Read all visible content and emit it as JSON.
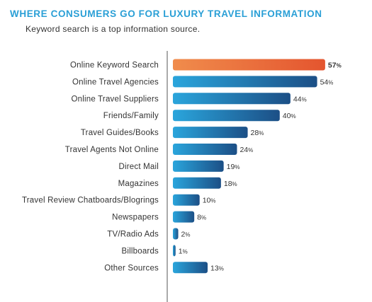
{
  "title": "WHERE CONSUMERS GO FOR LUXURY TRAVEL INFORMATION",
  "subtitle": "Keyword search is a top information source.",
  "colors": {
    "highlight_start": "#f08c4c",
    "highlight_end": "#e4552f",
    "bar_start": "#2aa5dc",
    "bar_end": "#1c4f86",
    "axis": "#555555",
    "text": "#333333"
  },
  "chart_data": {
    "type": "bar",
    "orientation": "horizontal",
    "categories": [
      "Online Keyword Search",
      "Online Travel Agencies",
      "Online Travel Suppliers",
      "Friends/Family",
      "Travel Guides/Books",
      "Travel Agents Not Online",
      "Direct Mail",
      "Magazines",
      "Travel Review Chatboards/Blogrings",
      "Newspapers",
      "TV/Radio Ads",
      "Billboards",
      "Other Sources"
    ],
    "values": [
      57,
      54,
      44,
      40,
      28,
      24,
      19,
      18,
      10,
      8,
      2,
      1,
      13
    ],
    "value_labels": [
      "57%",
      "54%",
      "44%",
      "40%",
      "28%",
      "24%",
      "19%",
      "18%",
      "10%",
      "8%",
      "2%",
      "1%",
      "13%"
    ],
    "highlighted_category": "Online Keyword Search",
    "unit": "%",
    "title": "WHERE CONSUMERS GO FOR LUXURY TRAVEL INFORMATION",
    "subtitle": "Keyword search is a top information source.",
    "xlabel": "",
    "ylabel": "",
    "xlim": [
      0,
      57
    ],
    "grid": false,
    "legend": "none"
  }
}
